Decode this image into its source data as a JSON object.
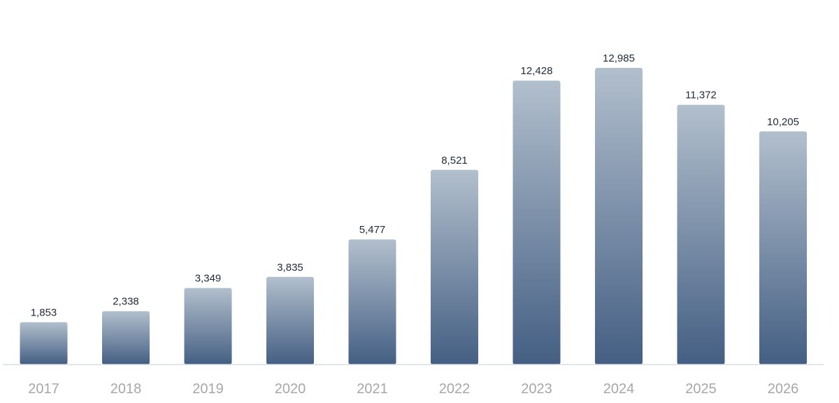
{
  "chart_data": {
    "type": "bar",
    "title": "",
    "xlabel": "",
    "ylabel": "",
    "categories": [
      "2017",
      "2018",
      "2019",
      "2020",
      "2021",
      "2022",
      "2023",
      "2024",
      "2025",
      "2026"
    ],
    "values": [
      1853,
      2338,
      3349,
      3835,
      5477,
      8521,
      12428,
      12985,
      11372,
      10205
    ],
    "value_labels": [
      "1,853",
      "2,338",
      "3,349",
      "3,835",
      "5,477",
      "8,521",
      "12,428",
      "12,985",
      "11,372",
      "10,205"
    ],
    "ylim": [
      0,
      12985
    ],
    "grid": false,
    "legend": "none",
    "colors": {
      "bar_top": "#b2bfcd",
      "bar_bottom": "#445f83",
      "baseline": "#d5dde6",
      "value_text": "#1f2a3a",
      "tick_text": "#a7a7a7"
    }
  }
}
